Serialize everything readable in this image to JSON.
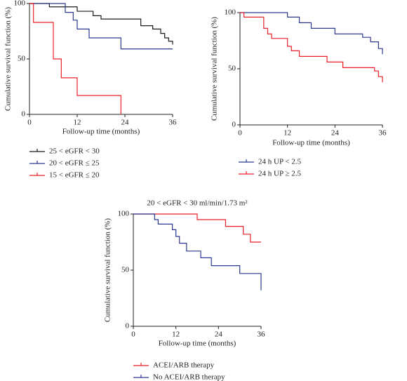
{
  "chart_data": [
    {
      "type": "line",
      "step": true,
      "x_label": "Follow-up time (months)",
      "y_label": "Cumulative survival function (%)",
      "xlim": [
        0,
        36
      ],
      "xticks": [
        0,
        12,
        24,
        36
      ],
      "ylim": [
        0,
        100
      ],
      "yticks": [
        0,
        50,
        100
      ],
      "series": [
        {
          "name": "25 < eGFR < 30",
          "color": "#1a1a1a",
          "x": [
            0,
            5,
            12,
            16,
            18,
            28,
            31,
            33,
            34,
            35,
            36
          ],
          "values": [
            100,
            97,
            93,
            89,
            86,
            80,
            77,
            73,
            69,
            66,
            63
          ]
        },
        {
          "name": "20 < eGFR ≤ 25",
          "color": "#2b3990",
          "x": [
            0,
            9,
            11,
            12,
            15,
            23,
            36
          ],
          "values": [
            100,
            92,
            85,
            77,
            69,
            59,
            59
          ]
        },
        {
          "name": "15 < eGFR ≤ 20",
          "color": "#e8202a",
          "x": [
            0,
            1,
            6,
            8,
            12,
            23
          ],
          "values": [
            100,
            83,
            50,
            33,
            17,
            0
          ]
        }
      ]
    },
    {
      "type": "line",
      "step": true,
      "x_label": "Follow-up time (months)",
      "y_label": "Cumulative survival function (%)",
      "xlim": [
        0,
        36
      ],
      "xticks": [
        0,
        12,
        24,
        36
      ],
      "ylim": [
        0,
        100
      ],
      "yticks": [
        0,
        50,
        100
      ],
      "series": [
        {
          "name": "24 h UP < 2.5",
          "color": "#2b3990",
          "x": [
            0,
            12,
            15,
            18,
            24,
            31,
            33,
            35,
            36
          ],
          "values": [
            100,
            96,
            91,
            86,
            81,
            78,
            74,
            68,
            63
          ]
        },
        {
          "name": "24 h UP ≥ 2.5",
          "color": "#e8202a",
          "x": [
            0,
            1,
            6,
            7,
            8,
            12,
            13,
            15,
            22,
            26,
            34,
            35,
            36
          ],
          "values": [
            100,
            96,
            86,
            81,
            77,
            70,
            66,
            61,
            56,
            51,
            48,
            43,
            38
          ]
        }
      ]
    },
    {
      "type": "line",
      "step": true,
      "title": "20 < eGFR < 30 ml/min/1.73 m²",
      "x_label": "Follow-up time (months)",
      "y_label": "Cumulative survival function (%)",
      "xlim": [
        0,
        36
      ],
      "xticks": [
        0,
        12,
        24,
        36
      ],
      "ylim": [
        0,
        100
      ],
      "yticks": [
        0,
        50,
        100
      ],
      "series": [
        {
          "name": "ACEI/ARB therapy",
          "color": "#e8202a",
          "x": [
            0,
            18,
            26,
            31,
            33,
            36
          ],
          "values": [
            100,
            95,
            89,
            82,
            75,
            75
          ]
        },
        {
          "name": "No ACEI/ARB therapy",
          "color": "#2b3990",
          "x": [
            0,
            6,
            7,
            11,
            12,
            13,
            15,
            19,
            22,
            30,
            36
          ],
          "values": [
            100,
            95,
            91,
            86,
            80,
            74,
            67,
            61,
            54,
            47,
            32
          ]
        }
      ]
    }
  ]
}
